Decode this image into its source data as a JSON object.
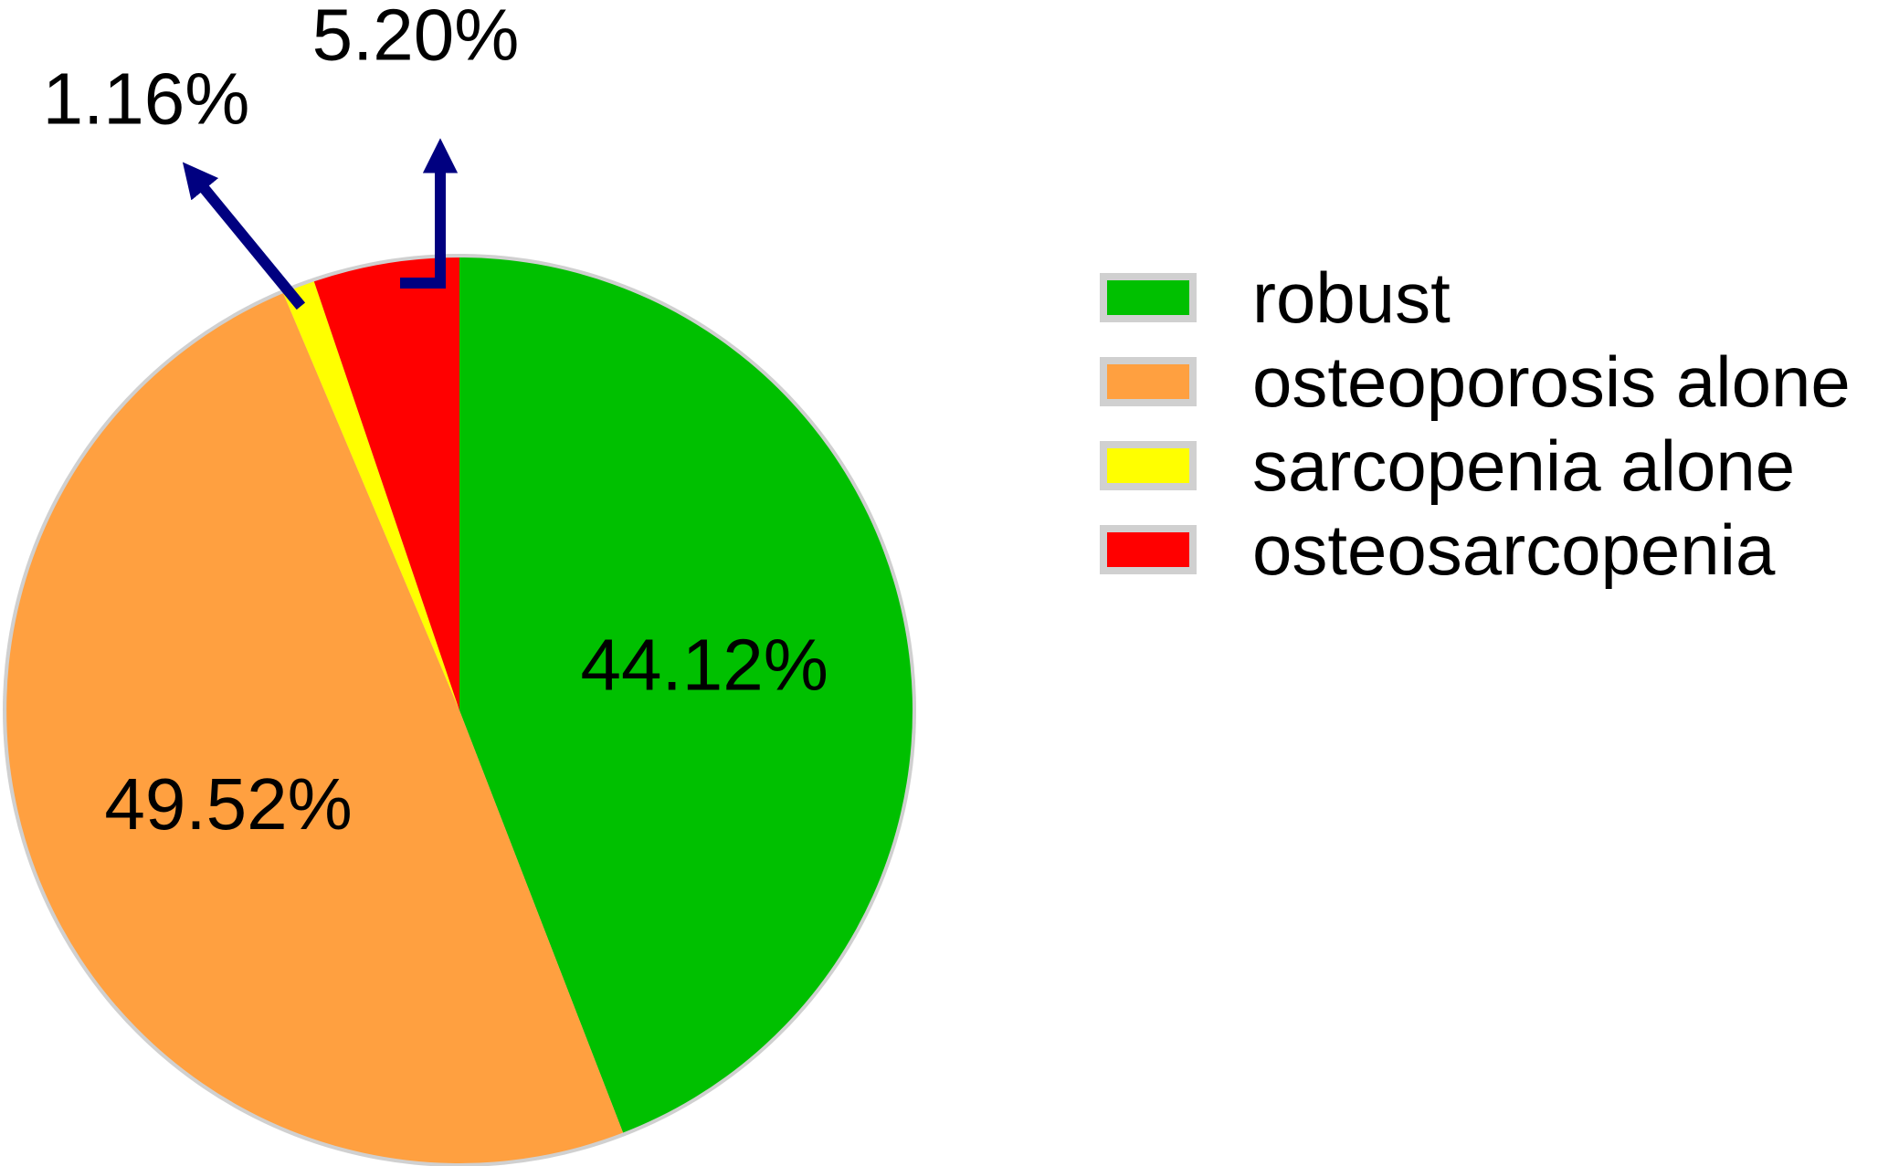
{
  "chart_data": {
    "type": "pie",
    "title": "",
    "slices": [
      {
        "label": "robust",
        "value": 44.12,
        "value_label": "44.12%",
        "color": "#00c000",
        "label_position": "inside"
      },
      {
        "label": "osteoporosis alone",
        "value": 49.52,
        "value_label": "49.52%",
        "color": "#ffa040",
        "label_position": "inside"
      },
      {
        "label": "sarcopenia alone",
        "value": 1.16,
        "value_label": "1.16%",
        "color": "#ffff00",
        "label_position": "outside-arrow"
      },
      {
        "label": "osteosarcopenia",
        "value": 5.2,
        "value_label": "5.20%",
        "color": "#ff0000",
        "label_position": "outside-arrow"
      }
    ],
    "start_angle": "12 o'clock",
    "direction": "clockwise",
    "border_color": "#d0d0d0",
    "arrow_color": "#000080",
    "legend": {
      "position": "right"
    }
  }
}
